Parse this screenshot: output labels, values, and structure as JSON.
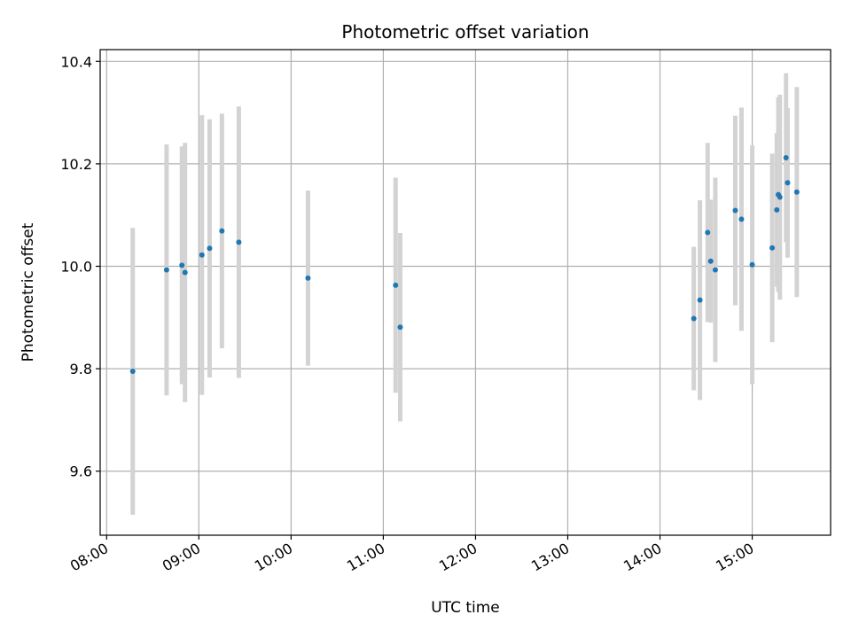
{
  "chart_data": {
    "type": "scatter",
    "title": "Photometric offset variation",
    "xlabel": "UTC time",
    "ylabel": "Photometric offset",
    "x_tick_labels": [
      "08:00",
      "09:00",
      "10:00",
      "11:00",
      "12:00",
      "13:00",
      "14:00",
      "15:00"
    ],
    "y_tick_labels": [
      "9.6",
      "9.8",
      "10.0",
      "10.2",
      "10.4"
    ],
    "x_ticks_hours": [
      8,
      9,
      10,
      11,
      12,
      13,
      14,
      15
    ],
    "y_ticks": [
      9.6,
      9.8,
      10.0,
      10.2,
      10.4
    ],
    "xlim_hours": [
      7.93,
      15.85
    ],
    "ylim": [
      9.475,
      10.423
    ],
    "grid": true,
    "marker_color": "#1f77b4",
    "errorbar_color": "#d3d3d3",
    "points": [
      {
        "time": "08:17",
        "y": 9.795,
        "yerr": 0.28
      },
      {
        "time": "08:39",
        "y": 9.993,
        "yerr": 0.245
      },
      {
        "time": "08:49",
        "y": 10.002,
        "yerr": 0.232
      },
      {
        "time": "08:51",
        "y": 9.988,
        "yerr": 0.253
      },
      {
        "time": "09:02",
        "y": 10.022,
        "yerr": 0.273
      },
      {
        "time": "09:07",
        "y": 10.035,
        "yerr": 0.252
      },
      {
        "time": "09:15",
        "y": 10.069,
        "yerr": 0.229
      },
      {
        "time": "09:26",
        "y": 10.047,
        "yerr": 0.265
      },
      {
        "time": "10:11",
        "y": 9.977,
        "yerr": 0.171
      },
      {
        "time": "11:08",
        "y": 9.963,
        "yerr": 0.21
      },
      {
        "time": "11:11",
        "y": 9.881,
        "yerr": 0.184
      },
      {
        "time": "14:22",
        "y": 9.898,
        "yerr": 0.14
      },
      {
        "time": "14:26",
        "y": 9.934,
        "yerr": 0.195
      },
      {
        "time": "14:31",
        "y": 10.066,
        "yerr": 0.175
      },
      {
        "time": "14:33",
        "y": 10.01,
        "yerr": 0.12
      },
      {
        "time": "14:36",
        "y": 9.993,
        "yerr": 0.18
      },
      {
        "time": "14:49",
        "y": 10.109,
        "yerr": 0.185
      },
      {
        "time": "14:53",
        "y": 10.092,
        "yerr": 0.218
      },
      {
        "time": "15:00",
        "y": 10.003,
        "yerr": 0.233
      },
      {
        "time": "15:13",
        "y": 10.036,
        "yerr": 0.184
      },
      {
        "time": "15:16",
        "y": 10.11,
        "yerr": 0.15
      },
      {
        "time": "15:17",
        "y": 10.14,
        "yerr": 0.19
      },
      {
        "time": "15:18",
        "y": 10.135,
        "yerr": 0.2
      },
      {
        "time": "15:22",
        "y": 10.212,
        "yerr": 0.165
      },
      {
        "time": "15:23",
        "y": 10.163,
        "yerr": 0.146
      },
      {
        "time": "15:29",
        "y": 10.145,
        "yerr": 0.205
      }
    ]
  }
}
